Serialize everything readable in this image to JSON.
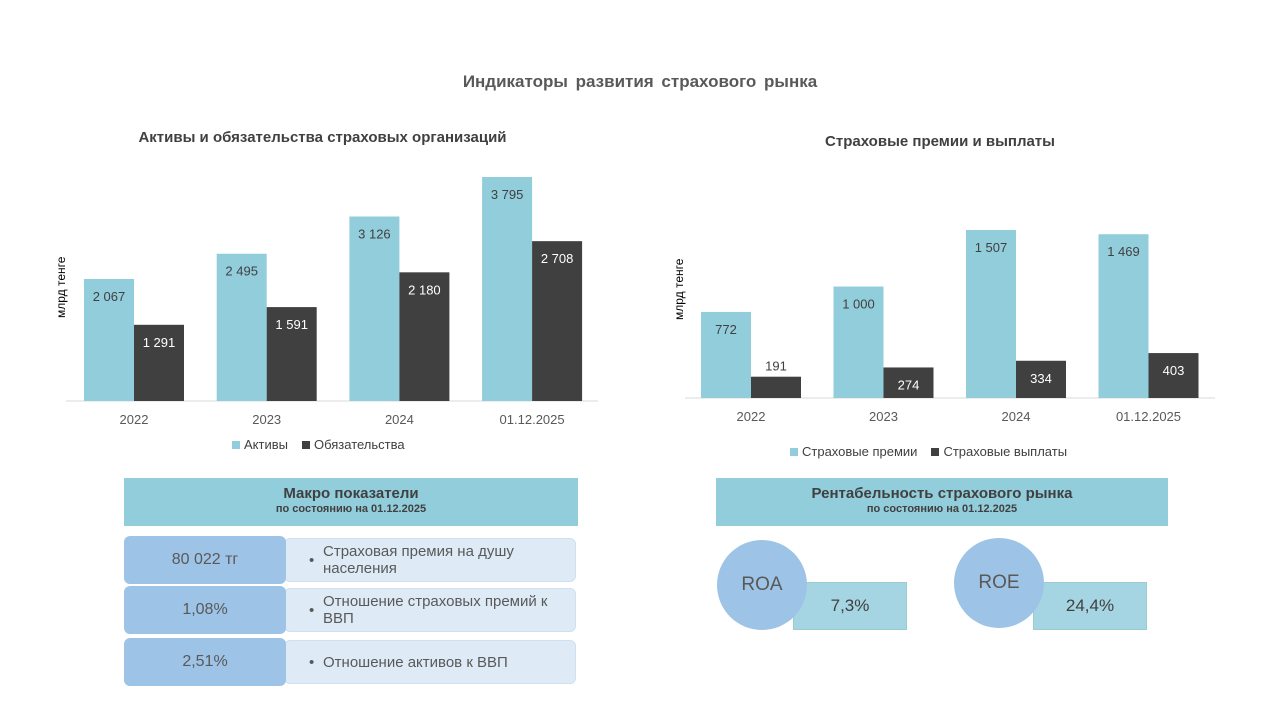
{
  "title": "Индикаторы развития страхового рынка",
  "chart_data": [
    {
      "type": "bar",
      "title": "Активы и обязательства страховых организаций",
      "ylabel": "млрд тенге",
      "categories": [
        "2022",
        "2023",
        "2024",
        "01.12.2025"
      ],
      "series": [
        {
          "name": "Активы",
          "values": [
            2067,
            2495,
            3126,
            3795
          ],
          "labels": [
            "2 067",
            "2 495",
            "3 126",
            "3 795"
          ],
          "color": "#92cddc"
        },
        {
          "name": "Обязательства",
          "values": [
            1291,
            1591,
            2180,
            2708
          ],
          "labels": [
            "1 291",
            "1 591",
            "2 180",
            "2 708"
          ],
          "color": "#404040"
        }
      ],
      "legend": "bottom",
      "grid": false
    },
    {
      "type": "bar",
      "title": "Страховые премии и выплаты",
      "ylabel": "млрд тенге",
      "categories": [
        "2022",
        "2023",
        "2024",
        "01.12.2025"
      ],
      "series": [
        {
          "name": "Страховые премии",
          "values": [
            772,
            1000,
            1507,
            1469
          ],
          "labels": [
            "772",
            "1 000",
            "1 507",
            "1 469"
          ],
          "color": "#92cddc"
        },
        {
          "name": "Страховые выплаты",
          "values": [
            191,
            274,
            334,
            403
          ],
          "labels": [
            "191",
            "274",
            "334",
            "403"
          ],
          "color": "#404040"
        }
      ],
      "legend": "bottom",
      "grid": false
    }
  ],
  "macro": {
    "title": "Макро показатели",
    "subtitle": "по состоянию на 01.12.2025",
    "rows": [
      {
        "value": "80 022 тг",
        "label": "Страховая премия на душу населения"
      },
      {
        "value": "1,08%",
        "label": "Отношение  страховых премий к ВВП"
      },
      {
        "value": "2,51%",
        "label": "Отношение  активов к ВВП"
      }
    ]
  },
  "profit": {
    "title": "Рентабельность страхового рынка",
    "subtitle": "по состоянию на 01.12.2025",
    "roa_label": "ROA",
    "roa_value": "7,3%",
    "roe_label": "ROE",
    "roe_value": "24,4%"
  }
}
